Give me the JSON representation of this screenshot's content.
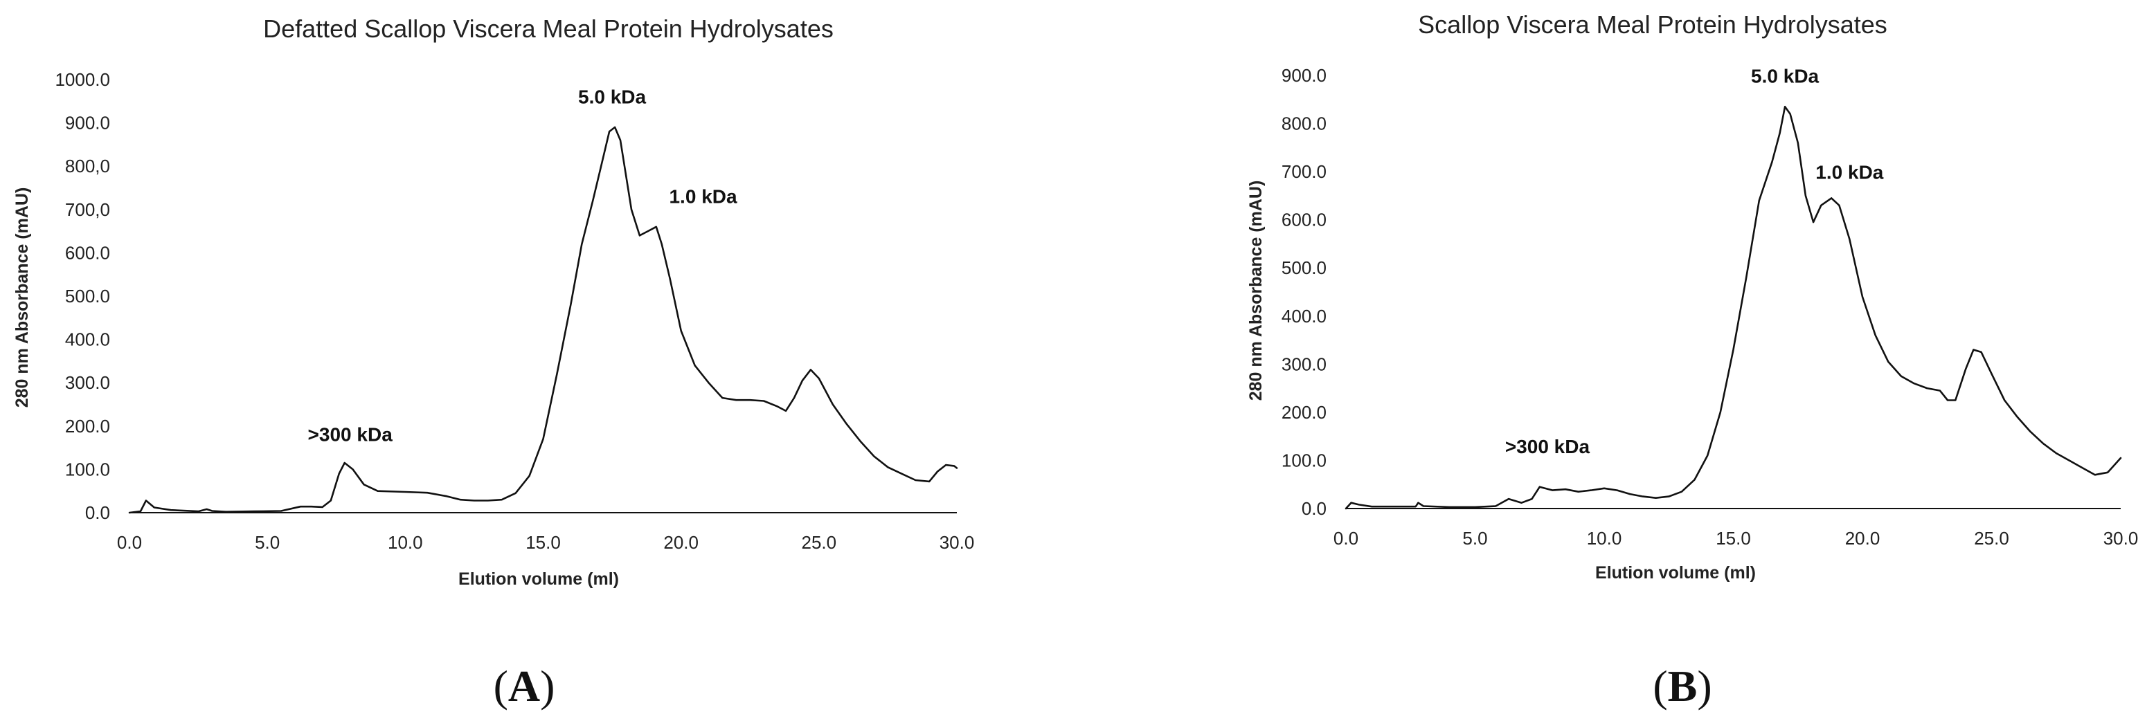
{
  "chart_data": [
    {
      "type": "line",
      "panel": "A",
      "title": "Defatted Scallop Viscera Meal Protein Hydrolysates",
      "xlabel": "Elution volume (ml)",
      "ylabel": "280 nm Absorbance (mAU)",
      "xlim": [
        0,
        30
      ],
      "ylim": [
        0,
        1000
      ],
      "xticks": [
        "0.0",
        "5.0",
        "10.0",
        "15.0",
        "20.0",
        "25.0",
        "30.0"
      ],
      "yticks": [
        "0.0",
        "100.0",
        "200.0",
        "300.0",
        "400.0",
        "500.0",
        "600.0",
        "700,0",
        "800,0",
        "900.0",
        "1000.0"
      ],
      "grid": false,
      "annotations": [
        {
          "text": ">300 kDa",
          "x": 8.0,
          "y": 165
        },
        {
          "text": "5.0 kDa",
          "x": 17.5,
          "y": 945
        },
        {
          "text": "1.0 kDa",
          "x": 20.8,
          "y": 715
        }
      ],
      "series": [
        {
          "x": [
            0.0,
            0.4,
            0.6,
            0.9,
            1.5,
            2.5,
            2.8,
            3.0,
            3.5,
            4.5,
            5.5,
            6.2,
            6.6,
            7.0,
            7.3,
            7.6,
            7.8,
            8.1,
            8.5,
            9.0,
            10.0,
            10.8,
            11.5,
            12.0,
            12.5,
            13.0,
            13.5,
            14.0,
            14.5,
            15.0,
            15.5,
            16.0,
            16.4,
            16.8,
            17.1,
            17.4,
            17.6,
            17.8,
            18.0,
            18.2,
            18.5,
            18.8,
            19.1,
            19.3,
            19.6,
            20.0,
            20.5,
            21.0,
            21.5,
            22.0,
            22.5,
            23.0,
            23.5,
            23.8,
            24.1,
            24.4,
            24.7,
            25.0,
            25.5,
            26.0,
            26.5,
            27.0,
            27.5,
            28.0,
            28.5,
            29.0,
            29.3,
            29.6,
            29.9,
            30.0
          ],
          "y": [
            0,
            3,
            28,
            12,
            6,
            3,
            8,
            4,
            2,
            3,
            4,
            14,
            14,
            13,
            28,
            90,
            115,
            100,
            65,
            50,
            48,
            46,
            38,
            30,
            28,
            28,
            30,
            45,
            85,
            170,
            320,
            480,
            620,
            720,
            800,
            880,
            890,
            860,
            780,
            700,
            640,
            650,
            660,
            620,
            540,
            420,
            340,
            300,
            265,
            260,
            260,
            258,
            245,
            235,
            265,
            305,
            330,
            310,
            250,
            205,
            165,
            130,
            105,
            90,
            75,
            72,
            95,
            110,
            108,
            103
          ]
        }
      ]
    },
    {
      "type": "line",
      "panel": "B",
      "title": "Scallop Viscera Meal Protein Hydrolysates",
      "xlabel": "Elution volume (ml)",
      "ylabel": "280 nm Absorbance (mAU)",
      "xlim": [
        0,
        30
      ],
      "ylim": [
        0,
        900
      ],
      "xticks": [
        "0.0",
        "5.0",
        "10.0",
        "15.0",
        "20.0",
        "25.0",
        "30.0"
      ],
      "yticks": [
        "0.0",
        "100.0",
        "200.0",
        "300.0",
        "400.0",
        "500.0",
        "600.0",
        "700.0",
        "800.0",
        "900.0"
      ],
      "grid": false,
      "annotations": [
        {
          "text": ">300 kDa",
          "x": 7.8,
          "y": 115
        },
        {
          "text": "5.0 kDa",
          "x": 17.0,
          "y": 885
        },
        {
          "text": "1.0 kDa",
          "x": 19.5,
          "y": 685
        }
      ],
      "series": [
        {
          "x": [
            0.0,
            0.2,
            0.5,
            1.0,
            2.0,
            2.7,
            2.8,
            3.0,
            4.0,
            5.0,
            5.8,
            6.3,
            6.8,
            7.2,
            7.5,
            8.0,
            8.5,
            9.0,
            9.5,
            10.0,
            10.5,
            11.0,
            11.5,
            12.0,
            12.5,
            13.0,
            13.5,
            14.0,
            14.5,
            15.0,
            15.5,
            16.0,
            16.5,
            16.8,
            17.0,
            17.2,
            17.5,
            17.8,
            18.1,
            18.4,
            18.8,
            19.1,
            19.5,
            20.0,
            20.5,
            21.0,
            21.5,
            22.0,
            22.5,
            23.0,
            23.3,
            23.6,
            24.0,
            24.3,
            24.6,
            25.0,
            25.5,
            26.0,
            26.5,
            27.0,
            27.5,
            28.0,
            28.5,
            29.0,
            29.5,
            30.0
          ],
          "y": [
            0,
            12,
            8,
            4,
            4,
            4,
            12,
            5,
            3,
            3,
            5,
            20,
            12,
            20,
            45,
            38,
            40,
            35,
            38,
            42,
            38,
            30,
            25,
            22,
            25,
            35,
            60,
            110,
            200,
            330,
            480,
            640,
            720,
            780,
            835,
            820,
            760,
            650,
            595,
            630,
            645,
            630,
            560,
            440,
            360,
            305,
            275,
            260,
            250,
            245,
            225,
            225,
            290,
            330,
            325,
            280,
            225,
            190,
            160,
            135,
            115,
            100,
            85,
            70,
            75,
            105
          ]
        }
      ]
    }
  ],
  "panel_labels": {
    "A": {
      "open": "(",
      "letter": "A",
      "close": ")"
    },
    "B": {
      "open": "(",
      "letter": "B",
      "close": ")"
    }
  }
}
